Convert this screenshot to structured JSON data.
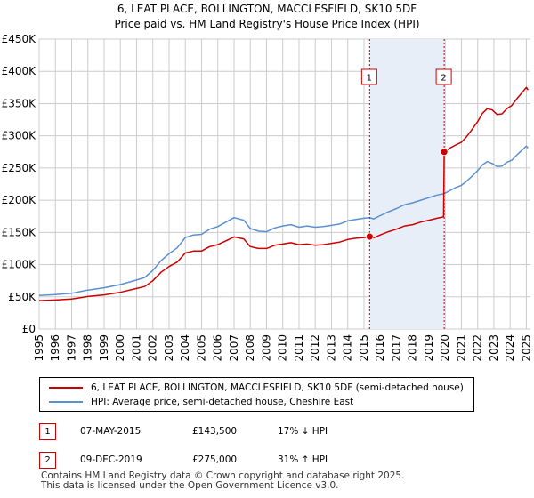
{
  "chart_data": {
    "type": "line",
    "title": "6, LEAT PLACE, BOLLINGTON, MACCLESFIELD, SK10 5DF",
    "subtitle": "Price paid vs. HM Land Registry's House Price Index (HPI)",
    "xlim": [
      1995,
      2025.25
    ],
    "ylim": [
      0,
      450000
    ],
    "x_ticks": [
      1995,
      1996,
      1997,
      1998,
      1999,
      2000,
      2001,
      2002,
      2003,
      2004,
      2005,
      2006,
      2007,
      2008,
      2009,
      2010,
      2011,
      2012,
      2013,
      2014,
      2015,
      2016,
      2017,
      2018,
      2019,
      2020,
      2021,
      2022,
      2023,
      2024,
      2025
    ],
    "y_ticks": [
      0,
      50000,
      100000,
      150000,
      200000,
      250000,
      300000,
      350000,
      400000,
      450000
    ],
    "y_tick_labels": [
      "£0",
      "£50K",
      "£100K",
      "£150K",
      "£200K",
      "£250K",
      "£300K",
      "£350K",
      "£400K",
      "£450K"
    ],
    "grid": true,
    "series": [
      {
        "name": "6, LEAT PLACE, BOLLINGTON, MACCLESFIELD, SK10 5DF (semi-detached house)",
        "color": "#cc0000",
        "x": [
          1995.0,
          1996.0,
          1997.0,
          1997.5,
          1998.0,
          1999.0,
          2000.0,
          2001.0,
          2001.5,
          2002.0,
          2002.5,
          2003.0,
          2003.5,
          2004.0,
          2004.5,
          2005.0,
          2005.5,
          2006.0,
          2006.5,
          2007.0,
          2007.6,
          2008.0,
          2008.5,
          2009.0,
          2009.5,
          2010.0,
          2010.5,
          2011.0,
          2011.5,
          2012.0,
          2012.5,
          2013.0,
          2013.5,
          2014.0,
          2014.5,
          2015.0,
          2015.35,
          2015.6,
          2016.0,
          2016.5,
          2017.0,
          2017.5,
          2018.0,
          2018.5,
          2019.0,
          2019.5,
          2019.9,
          2019.94,
          2020.0,
          2020.3,
          2020.6,
          2021.0,
          2021.3,
          2021.6,
          2022.0,
          2022.3,
          2022.6,
          2022.9,
          2023.2,
          2023.5,
          2023.8,
          2024.1,
          2024.4,
          2024.7,
          2025.0,
          2025.1
        ],
        "y": [
          44000,
          45000,
          46500,
          48500,
          50500,
          53000,
          57000,
          63000,
          66000,
          75000,
          88000,
          97000,
          104000,
          118000,
          121000,
          121000,
          128000,
          131000,
          137000,
          143000,
          140000,
          128000,
          125000,
          125000,
          130000,
          132000,
          134000,
          131000,
          132000,
          130000,
          131000,
          133000,
          135000,
          139000,
          141000,
          142000,
          143500,
          141500,
          146000,
          151000,
          155000,
          160000,
          162000,
          166000,
          169000,
          172000,
          174000,
          275000,
          276000,
          281000,
          285000,
          290000,
          298000,
          308000,
          322000,
          335000,
          342000,
          340000,
          333000,
          334000,
          342000,
          347000,
          357000,
          366000,
          375000,
          371000
        ]
      },
      {
        "name": "HPI: Average price, semi-detached house, Cheshire East",
        "color": "#5b8fd0",
        "x": [
          1995.0,
          1996.0,
          1997.0,
          1997.5,
          1998.0,
          1999.0,
          2000.0,
          2001.0,
          2001.5,
          2002.0,
          2002.5,
          2003.0,
          2003.5,
          2004.0,
          2004.5,
          2005.0,
          2005.5,
          2006.0,
          2006.5,
          2007.0,
          2007.6,
          2008.0,
          2008.5,
          2009.0,
          2009.5,
          2010.0,
          2010.5,
          2011.0,
          2011.5,
          2012.0,
          2012.5,
          2013.0,
          2013.5,
          2014.0,
          2014.5,
          2015.0,
          2015.35,
          2015.6,
          2016.0,
          2016.5,
          2017.0,
          2017.5,
          2018.0,
          2018.5,
          2019.0,
          2019.5,
          2019.9,
          2020.0,
          2020.3,
          2020.6,
          2021.0,
          2021.3,
          2021.6,
          2022.0,
          2022.3,
          2022.6,
          2022.9,
          2023.2,
          2023.5,
          2023.8,
          2024.1,
          2024.4,
          2024.7,
          2025.0,
          2025.1
        ],
        "y": [
          52000,
          53500,
          55500,
          58000,
          60500,
          64000,
          69000,
          76000,
          80000,
          91000,
          106000,
          117000,
          126000,
          142000,
          146000,
          147000,
          155000,
          159000,
          166000,
          173000,
          169000,
          156000,
          152000,
          151000,
          157000,
          160000,
          162000,
          158000,
          160000,
          158000,
          159000,
          161000,
          163000,
          168000,
          170000,
          172000,
          173000,
          171000,
          176000,
          182000,
          187000,
          193000,
          196000,
          200000,
          204000,
          208000,
          210000,
          211000,
          215000,
          219000,
          223000,
          229000,
          236000,
          246000,
          255000,
          260000,
          257000,
          252000,
          253000,
          259000,
          262000,
          270000,
          277000,
          284000,
          281000
        ]
      }
    ],
    "annotations": [
      {
        "label": "1",
        "x": 2015.35,
        "y": 143500,
        "shade_to": 2019.94
      },
      {
        "label": "2",
        "x": 2019.94,
        "y": 275000
      }
    ],
    "legend_position": "bottom"
  },
  "legend": {
    "items": [
      {
        "label": "6, LEAT PLACE, BOLLINGTON, MACCLESFIELD, SK10 5DF (semi-detached house)",
        "color": "#cc0000"
      },
      {
        "label": "HPI: Average price, semi-detached house, Cheshire East",
        "color": "#5b8fd0"
      }
    ]
  },
  "transactions": [
    {
      "num": "1",
      "date": "07-MAY-2015",
      "price": "£143,500",
      "hpi": "17% ↓ HPI"
    },
    {
      "num": "2",
      "date": "09-DEC-2019",
      "price": "£275,000",
      "hpi": "31% ↑ HPI"
    }
  ],
  "footer": {
    "line1": "Contains HM Land Registry data © Crown copyright and database right 2025.",
    "line2": "This data is licensed under the Open Government Licence v3.0."
  }
}
